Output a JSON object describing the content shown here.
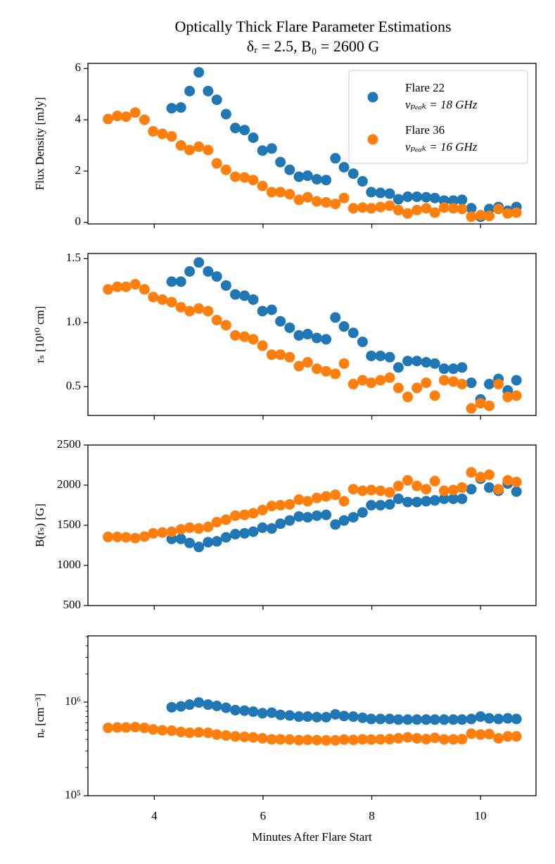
{
  "chart_data": [
    {
      "type": "scatter",
      "title": "Optically Thick Flare Parameter Estimations",
      "subtitle": "δᵣ = 2.5, B₀ = 2600 G",
      "ylabel": "Flux Density [mJy]",
      "legend": "upper right",
      "xlim": [
        2.78,
        11.02
      ],
      "xticks": [
        4,
        6,
        8,
        10
      ],
      "ylim": [
        -0.06,
        6.2
      ],
      "yticks": [
        0,
        2,
        4,
        6
      ],
      "series": [
        {
          "name": "Flare 22",
          "detail": "vₚₑₐₖ = 18 GHz",
          "color": "#1f77b4",
          "x": [
            4.32,
            4.49,
            4.65,
            4.82,
            4.99,
            5.15,
            5.32,
            5.49,
            5.66,
            5.82,
            5.99,
            6.16,
            6.32,
            6.49,
            6.66,
            6.82,
            6.99,
            7.16,
            7.33,
            7.49,
            7.66,
            7.83,
            7.99,
            8.16,
            8.33,
            8.49,
            8.66,
            8.83,
            9.0,
            9.16,
            9.33,
            9.5,
            9.66,
            9.83,
            10.0,
            10.16,
            10.33,
            10.5,
            10.66
          ],
          "values": [
            4.45,
            4.48,
            5.12,
            5.85,
            5.12,
            4.78,
            4.22,
            3.68,
            3.6,
            3.3,
            2.8,
            2.88,
            2.35,
            2.05,
            1.78,
            1.82,
            1.68,
            1.65,
            2.5,
            2.15,
            1.9,
            1.6,
            1.18,
            1.15,
            1.12,
            0.9,
            1.0,
            1.0,
            0.98,
            0.95,
            0.85,
            0.85,
            0.88,
            0.55,
            0.22,
            0.52,
            0.6,
            0.45,
            0.6
          ]
        },
        {
          "name": "Flare 36",
          "detail": "vₚₑₐₖ = 16 GHz",
          "color": "#ff7f0e",
          "x": [
            3.15,
            3.32,
            3.48,
            3.65,
            3.82,
            3.98,
            4.15,
            4.32,
            4.49,
            4.65,
            4.82,
            4.99,
            5.15,
            5.32,
            5.49,
            5.66,
            5.82,
            5.99,
            6.16,
            6.32,
            6.49,
            6.66,
            6.82,
            6.99,
            7.16,
            7.33,
            7.49,
            7.66,
            7.83,
            7.99,
            8.16,
            8.33,
            8.49,
            8.66,
            8.83,
            9.0,
            9.16,
            9.33,
            9.5,
            9.66,
            9.83,
            10.0,
            10.16,
            10.33,
            10.5,
            10.66
          ],
          "values": [
            4.03,
            4.15,
            4.12,
            4.28,
            4.0,
            3.55,
            3.45,
            3.35,
            3.0,
            2.82,
            2.95,
            2.82,
            2.3,
            2.05,
            1.78,
            1.75,
            1.65,
            1.42,
            1.18,
            1.18,
            1.1,
            0.88,
            0.98,
            0.82,
            0.78,
            0.72,
            0.95,
            0.55,
            0.58,
            0.55,
            0.6,
            0.65,
            0.48,
            0.35,
            0.48,
            0.55,
            0.38,
            0.58,
            0.55,
            0.52,
            0.22,
            0.28,
            0.25,
            0.52,
            0.35,
            0.38
          ]
        }
      ]
    },
    {
      "type": "scatter",
      "ylabel": "rₛ [10¹⁰ cm]",
      "xlim": [
        2.78,
        11.02
      ],
      "xticks": [
        4,
        6,
        8,
        10
      ],
      "ylim": [
        0.275,
        1.54
      ],
      "yticks": [
        0.5,
        {
          "value": 1,
          "label": "1.0"
        },
        1.5
      ],
      "series": [
        {
          "color": "#1f77b4",
          "x": [
            4.32,
            4.49,
            4.65,
            4.82,
            4.99,
            5.15,
            5.32,
            5.49,
            5.66,
            5.82,
            5.99,
            6.16,
            6.32,
            6.49,
            6.66,
            6.82,
            6.99,
            7.16,
            7.33,
            7.49,
            7.66,
            7.83,
            7.99,
            8.16,
            8.33,
            8.49,
            8.66,
            8.83,
            9.0,
            9.16,
            9.33,
            9.5,
            9.66,
            9.83,
            10.0,
            10.16,
            10.33,
            10.5,
            10.66
          ],
          "values": [
            1.32,
            1.32,
            1.4,
            1.47,
            1.4,
            1.36,
            1.29,
            1.22,
            1.21,
            1.18,
            1.09,
            1.1,
            1.01,
            0.96,
            0.9,
            0.91,
            0.88,
            0.87,
            1.04,
            0.97,
            0.92,
            0.85,
            0.74,
            0.74,
            0.73,
            0.65,
            0.7,
            0.7,
            0.69,
            0.68,
            0.64,
            0.64,
            0.65,
            0.53,
            0.4,
            0.52,
            0.56,
            0.47,
            0.55
          ]
        },
        {
          "color": "#ff7f0e",
          "x": [
            3.15,
            3.32,
            3.48,
            3.65,
            3.82,
            3.98,
            4.15,
            4.32,
            4.49,
            4.65,
            4.82,
            4.99,
            5.15,
            5.32,
            5.49,
            5.66,
            5.82,
            5.99,
            6.16,
            6.32,
            6.49,
            6.66,
            6.82,
            6.99,
            7.16,
            7.33,
            7.49,
            7.66,
            7.83,
            7.99,
            8.16,
            8.33,
            8.49,
            8.66,
            8.83,
            9.0,
            9.16,
            9.33,
            9.5,
            9.66,
            9.83,
            10.0,
            10.16,
            10.33,
            10.5,
            10.66
          ],
          "values": [
            1.26,
            1.28,
            1.28,
            1.3,
            1.26,
            1.2,
            1.18,
            1.16,
            1.12,
            1.09,
            1.11,
            1.09,
            1.02,
            0.98,
            0.9,
            0.89,
            0.87,
            0.82,
            0.75,
            0.75,
            0.73,
            0.66,
            0.69,
            0.64,
            0.62,
            0.6,
            0.68,
            0.52,
            0.55,
            0.53,
            0.55,
            0.57,
            0.49,
            0.42,
            0.49,
            0.53,
            0.43,
            0.55,
            0.54,
            0.52,
            0.33,
            0.37,
            0.35,
            0.52,
            0.42,
            0.43
          ]
        }
      ]
    },
    {
      "type": "scatter",
      "ylabel": "B(rₛ) [G]",
      "xlim": [
        2.78,
        11.02
      ],
      "xticks": [
        4,
        6,
        8,
        10
      ],
      "ylim": [
        500,
        2500
      ],
      "yticks": [
        500,
        1000,
        1500,
        2000,
        2500
      ],
      "series": [
        {
          "color": "#1f77b4",
          "x": [
            4.32,
            4.49,
            4.65,
            4.82,
            4.99,
            5.15,
            5.32,
            5.49,
            5.66,
            5.82,
            5.99,
            6.16,
            6.32,
            6.49,
            6.66,
            6.82,
            6.99,
            7.16,
            7.33,
            7.49,
            7.66,
            7.83,
            7.99,
            8.16,
            8.33,
            8.49,
            8.66,
            8.83,
            9.0,
            9.16,
            9.33,
            9.5,
            9.66,
            9.83,
            10.0,
            10.16,
            10.33,
            10.5,
            10.66
          ],
          "values": [
            1330,
            1330,
            1280,
            1230,
            1290,
            1300,
            1350,
            1390,
            1400,
            1420,
            1470,
            1460,
            1520,
            1560,
            1610,
            1600,
            1620,
            1630,
            1510,
            1560,
            1600,
            1660,
            1750,
            1750,
            1760,
            1830,
            1790,
            1790,
            1800,
            1810,
            1830,
            1830,
            1830,
            1950,
            2080,
            1970,
            1930,
            2020,
            1920
          ]
        },
        {
          "color": "#ff7f0e",
          "x": [
            3.15,
            3.32,
            3.48,
            3.65,
            3.82,
            3.98,
            4.15,
            4.32,
            4.49,
            4.65,
            4.82,
            4.99,
            5.15,
            5.32,
            5.49,
            5.66,
            5.82,
            5.99,
            6.16,
            6.32,
            6.49,
            6.66,
            6.82,
            6.99,
            7.16,
            7.33,
            7.49,
            7.66,
            7.83,
            7.99,
            8.16,
            8.33,
            8.49,
            8.66,
            8.83,
            9.0,
            9.16,
            9.33,
            9.5,
            9.66,
            9.83,
            10.0,
            10.16,
            10.33,
            10.5,
            10.66
          ],
          "values": [
            1355,
            1355,
            1350,
            1340,
            1360,
            1400,
            1410,
            1420,
            1450,
            1470,
            1460,
            1480,
            1540,
            1570,
            1620,
            1630,
            1650,
            1690,
            1740,
            1750,
            1760,
            1820,
            1800,
            1840,
            1860,
            1880,
            1800,
            1950,
            1930,
            1940,
            1930,
            1910,
            1990,
            2060,
            1990,
            1950,
            2050,
            1930,
            1940,
            1970,
            2160,
            2100,
            2130,
            1950,
            2060,
            2040
          ]
        }
      ]
    },
    {
      "type": "scatter",
      "ylabel": "nₑ [cm⁻³]",
      "xlabel": "Minutes After Flare Start",
      "yscale": "log",
      "xlim": [
        2.78,
        11.02
      ],
      "xticks": [
        4,
        6,
        8,
        10
      ],
      "ylim": [
        100000,
        5100000
      ],
      "yticks": [
        {
          "value": 100000,
          "label": "10⁵"
        },
        {
          "value": 1000000,
          "label": "10⁶"
        }
      ],
      "series": [
        {
          "color": "#1f77b4",
          "x": [
            4.32,
            4.49,
            4.65,
            4.82,
            4.99,
            5.15,
            5.32,
            5.49,
            5.66,
            5.82,
            5.99,
            6.16,
            6.32,
            6.49,
            6.66,
            6.82,
            6.99,
            7.16,
            7.33,
            7.49,
            7.66,
            7.83,
            7.99,
            8.16,
            8.33,
            8.49,
            8.66,
            8.83,
            9.0,
            9.16,
            9.33,
            9.5,
            9.66,
            9.83,
            10.0,
            10.16,
            10.33,
            10.5,
            10.66
          ],
          "values": [
            880000,
            900000,
            940000,
            990000,
            940000,
            910000,
            870000,
            820000,
            810000,
            790000,
            760000,
            770000,
            730000,
            720000,
            700000,
            700000,
            690000,
            690000,
            740000,
            710000,
            700000,
            680000,
            660000,
            660000,
            660000,
            650000,
            650000,
            650000,
            650000,
            650000,
            650000,
            650000,
            650000,
            660000,
            700000,
            670000,
            660000,
            670000,
            660000
          ]
        },
        {
          "color": "#ff7f0e",
          "x": [
            3.15,
            3.32,
            3.48,
            3.65,
            3.82,
            3.98,
            4.15,
            4.32,
            4.49,
            4.65,
            4.82,
            4.99,
            5.15,
            5.32,
            5.49,
            5.66,
            5.82,
            5.99,
            6.16,
            6.32,
            6.49,
            6.66,
            6.82,
            6.99,
            7.16,
            7.33,
            7.49,
            7.66,
            7.83,
            7.99,
            8.16,
            8.33,
            8.49,
            8.66,
            8.83,
            9.0,
            9.16,
            9.33,
            9.5,
            9.66,
            9.83,
            10.0,
            10.16,
            10.33,
            10.5,
            10.66
          ],
          "values": [
            530000,
            535000,
            535000,
            540000,
            530000,
            510000,
            500000,
            495000,
            480000,
            470000,
            475000,
            470000,
            450000,
            440000,
            430000,
            425000,
            420000,
            410000,
            400000,
            400000,
            398000,
            392000,
            395000,
            392000,
            390000,
            390000,
            398000,
            395000,
            400000,
            398000,
            400000,
            402000,
            410000,
            420000,
            410000,
            402000,
            415000,
            400000,
            400000,
            402000,
            460000,
            450000,
            455000,
            410000,
            430000,
            430000
          ]
        }
      ]
    }
  ]
}
